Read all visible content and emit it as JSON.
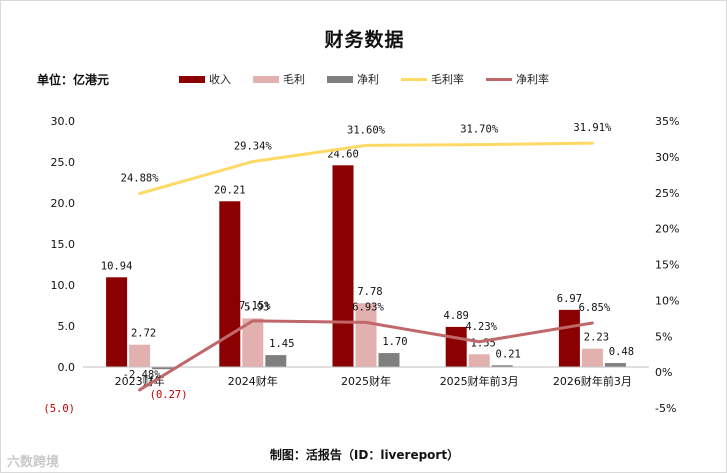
{
  "header": {
    "title": "财务数据",
    "unit": "单位：亿港元"
  },
  "footer": {
    "source": "制图：活报告（ID：livereport）"
  },
  "watermark": {
    "text": "六数跨境"
  },
  "colors": {
    "revenue": "#8b0000",
    "gross": "#e3b0b0",
    "net": "#7f7f7f",
    "gross_margin": "#ffd966",
    "net_margin": "#c0676a",
    "negative_label": "#c00000"
  },
  "chart_data": {
    "type": "bar+line",
    "title": "财务数据",
    "categories": [
      "2023财年",
      "2024财年",
      "2025财年",
      "2025财年前3月",
      "2026财年前3月"
    ],
    "series": [
      {
        "name": "收入",
        "type": "bar",
        "axis": "left",
        "values": [
          10.94,
          20.21,
          24.6,
          4.89,
          6.97
        ],
        "labels": [
          "10.94",
          "20.21",
          "24.60",
          "4.89",
          "6.97"
        ]
      },
      {
        "name": "毛利",
        "type": "bar",
        "axis": "left",
        "values": [
          2.72,
          5.93,
          7.78,
          1.55,
          2.23
        ],
        "labels": [
          "2.72",
          "5.93",
          "7.78",
          "1.55",
          "2.23"
        ]
      },
      {
        "name": "净利",
        "type": "bar",
        "axis": "left",
        "values": [
          -0.27,
          1.45,
          1.7,
          0.21,
          0.48
        ],
        "labels": [
          "(0.27)",
          "1.45",
          "1.70",
          "0.21",
          "0.48"
        ]
      },
      {
        "name": "毛利率",
        "type": "line",
        "axis": "right",
        "values": [
          24.88,
          29.34,
          31.6,
          31.7,
          31.91
        ],
        "labels": [
          "24.88%",
          "29.34%",
          "31.60%",
          "31.70%",
          "31.91%"
        ]
      },
      {
        "name": "净利率",
        "type": "line",
        "axis": "right",
        "values": [
          -2.48,
          7.15,
          6.93,
          4.23,
          6.85
        ],
        "labels": [
          "-2.48%",
          "7.15%",
          "6.93%",
          "4.23%",
          "6.85%"
        ]
      }
    ],
    "y_left": {
      "min": -5,
      "max": 30,
      "ticks": [
        -5,
        0,
        5,
        10,
        15,
        20,
        25,
        30
      ],
      "tick_labels": [
        "(5.0)",
        "0.0",
        "5.0",
        "10.0",
        "15.0",
        "20.0",
        "25.0",
        "30.0"
      ]
    },
    "y_right": {
      "min": -5,
      "max": 35,
      "ticks": [
        -5,
        0,
        5,
        10,
        15,
        20,
        25,
        30,
        35
      ],
      "tick_labels": [
        "-5%",
        "0%",
        "5%",
        "10%",
        "15%",
        "20%",
        "25%",
        "30%",
        "35%"
      ]
    },
    "grid": false,
    "legend": "top"
  }
}
